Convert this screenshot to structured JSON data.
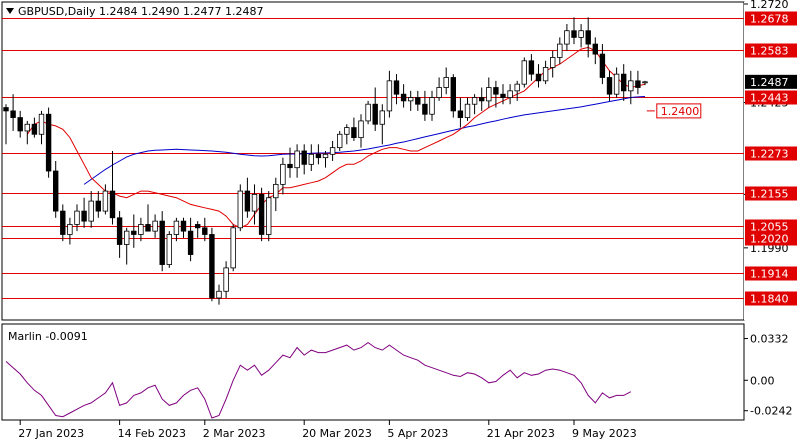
{
  "header": {
    "title": "GBPUSD,Daily  1.2484  1.2490  1.2477  1.2487"
  },
  "colors": {
    "bull": "#ffffff",
    "bear": "#000000",
    "candle_outline": "#000000",
    "level_line": "#e00000",
    "level_box": "#e00000",
    "level_text": "#ffffff",
    "ma_fast": "#e00000",
    "ma_slow": "#0000cc",
    "marlin": "#800080",
    "axis_text": "#000000",
    "grid_border": "#000000"
  },
  "chart_data": [
    {
      "type": "candlestick",
      "title": "GBPUSD,Daily  1.2484  1.2490  1.2477  1.2487",
      "symbol": "GBPUSD",
      "timeframe": "Daily",
      "last_ohlc": {
        "open": 1.2484,
        "high": 1.249,
        "low": 1.2477,
        "close": 1.2487
      },
      "current_price_label": "1.2487",
      "ylim": [
        1.178,
        1.272
      ],
      "y_tick_labels": [
        "1.2720",
        "1.2425",
        "1.2150",
        "1.1990"
      ],
      "y_tick_values": [
        1.272,
        1.2425,
        1.215,
        1.199
      ],
      "x_tick_labels": [
        "27 Jan 2023",
        "14 Feb 2023",
        "2 Mar 2023",
        "20 Mar 2023",
        "5 Apr 2023",
        "21 Apr 2023",
        "9 May 2023"
      ],
      "x_tick_index": [
        2,
        16,
        28,
        42,
        54,
        68,
        80
      ],
      "levels": [
        {
          "value": 1.2678,
          "label": "1.2678"
        },
        {
          "value": 1.2583,
          "label": "1.2583"
        },
        {
          "value": 1.2443,
          "label": "1.2443"
        },
        {
          "value": 1.2273,
          "label": "1.2273"
        },
        {
          "value": 1.2155,
          "label": "1.2155"
        },
        {
          "value": 1.2055,
          "label": "1.2055"
        },
        {
          "value": 1.202,
          "label": "1.2020"
        },
        {
          "value": 1.1914,
          "label": "1.1914"
        },
        {
          "value": 1.184,
          "label": "1.1840"
        }
      ],
      "annotation": {
        "value": 1.24,
        "label": "1.2400",
        "index": 88
      },
      "candles": [
        [
          1.241,
          1.242,
          1.23,
          1.24
        ],
        [
          1.24,
          1.245,
          1.234,
          1.238
        ],
        [
          1.238,
          1.24,
          1.232,
          1.234
        ],
        [
          1.234,
          1.237,
          1.23,
          1.236
        ],
        [
          1.236,
          1.238,
          1.232,
          1.233
        ],
        [
          1.233,
          1.24,
          1.23,
          1.239
        ],
        [
          1.239,
          1.241,
          1.22,
          1.222
        ],
        [
          1.222,
          1.225,
          1.208,
          1.21
        ],
        [
          1.21,
          1.212,
          1.201,
          1.203
        ],
        [
          1.203,
          1.208,
          1.2,
          1.206
        ],
        [
          1.206,
          1.212,
          1.204,
          1.21
        ],
        [
          1.21,
          1.214,
          1.205,
          1.207
        ],
        [
          1.207,
          1.216,
          1.205,
          1.213
        ],
        [
          1.213,
          1.216,
          1.208,
          1.21
        ],
        [
          1.21,
          1.218,
          1.209,
          1.216
        ],
        [
          1.216,
          1.228,
          1.206,
          1.208
        ],
        [
          1.208,
          1.21,
          1.196,
          1.2
        ],
        [
          1.2,
          1.205,
          1.194,
          1.204
        ],
        [
          1.204,
          1.209,
          1.199,
          1.203
        ],
        [
          1.203,
          1.208,
          1.201,
          1.206
        ],
        [
          1.206,
          1.212,
          1.204,
          1.204
        ],
        [
          1.204,
          1.209,
          1.202,
          1.207
        ],
        [
          1.207,
          1.21,
          1.192,
          1.194
        ],
        [
          1.194,
          1.204,
          1.193,
          1.203
        ],
        [
          1.203,
          1.208,
          1.201,
          1.207
        ],
        [
          1.207,
          1.208,
          1.202,
          1.204
        ],
        [
          1.204,
          1.208,
          1.195,
          1.197
        ],
        [
          1.206,
          1.207,
          1.202,
          1.205
        ],
        [
          1.205,
          1.208,
          1.201,
          1.203
        ],
        [
          1.203,
          1.205,
          1.183,
          1.184
        ],
        [
          1.184,
          1.188,
          1.182,
          1.186
        ],
        [
          1.186,
          1.195,
          1.184,
          1.193
        ],
        [
          1.193,
          1.206,
          1.192,
          1.205
        ],
        [
          1.205,
          1.218,
          1.204,
          1.216
        ],
        [
          1.216,
          1.22,
          1.208,
          1.21
        ],
        [
          1.21,
          1.218,
          1.206,
          1.215
        ],
        [
          1.215,
          1.217,
          1.201,
          1.203
        ],
        [
          1.203,
          1.216,
          1.201,
          1.214
        ],
        [
          1.214,
          1.22,
          1.21,
          1.218
        ],
        [
          1.218,
          1.226,
          1.215,
          1.224
        ],
        [
          1.224,
          1.229,
          1.22,
          1.223
        ],
        [
          1.223,
          1.23,
          1.22,
          1.228
        ],
        [
          1.228,
          1.23,
          1.221,
          1.224
        ],
        [
          1.224,
          1.23,
          1.222,
          1.227
        ],
        [
          1.227,
          1.23,
          1.224,
          1.226
        ],
        [
          1.226,
          1.228,
          1.223,
          1.227
        ],
        [
          1.227,
          1.231,
          1.225,
          1.229
        ],
        [
          1.229,
          1.234,
          1.228,
          1.233
        ],
        [
          1.233,
          1.236,
          1.23,
          1.235
        ],
        [
          1.235,
          1.238,
          1.231,
          1.232
        ],
        [
          1.232,
          1.239,
          1.229,
          1.237
        ],
        [
          1.237,
          1.243,
          1.236,
          1.242
        ],
        [
          1.242,
          1.247,
          1.234,
          1.236
        ],
        [
          1.236,
          1.242,
          1.23,
          1.24
        ],
        [
          1.24,
          1.252,
          1.238,
          1.249
        ],
        [
          1.249,
          1.251,
          1.242,
          1.245
        ],
        [
          1.245,
          1.248,
          1.241,
          1.243
        ],
        [
          1.243,
          1.246,
          1.24,
          1.244
        ],
        [
          1.244,
          1.246,
          1.24,
          1.242
        ],
        [
          1.242,
          1.246,
          1.237,
          1.239
        ],
        [
          1.239,
          1.246,
          1.237,
          1.244
        ],
        [
          1.244,
          1.25,
          1.243,
          1.247
        ],
        [
          1.247,
          1.253,
          1.245,
          1.25
        ],
        [
          1.25,
          1.251,
          1.238,
          1.24
        ],
        [
          1.24,
          1.244,
          1.235,
          1.238
        ],
        [
          1.238,
          1.244,
          1.237,
          1.242
        ],
        [
          1.242,
          1.245,
          1.239,
          1.244
        ],
        [
          1.244,
          1.247,
          1.24,
          1.243
        ],
        [
          1.243,
          1.25,
          1.241,
          1.247
        ],
        [
          1.247,
          1.249,
          1.241,
          1.245
        ],
        [
          1.245,
          1.248,
          1.242,
          1.244
        ],
        [
          1.244,
          1.248,
          1.242,
          1.246
        ],
        [
          1.246,
          1.249,
          1.243,
          1.248
        ],
        [
          1.248,
          1.256,
          1.247,
          1.255
        ],
        [
          1.255,
          1.257,
          1.249,
          1.251
        ],
        [
          1.251,
          1.254,
          1.247,
          1.249
        ],
        [
          1.249,
          1.255,
          1.248,
          1.253
        ],
        [
          1.253,
          1.258,
          1.25,
          1.256
        ],
        [
          1.256,
          1.262,
          1.254,
          1.26
        ],
        [
          1.26,
          1.266,
          1.258,
          1.264
        ],
        [
          1.264,
          1.268,
          1.26,
          1.262
        ],
        [
          1.262,
          1.266,
          1.259,
          1.264
        ],
        [
          1.264,
          1.268,
          1.256,
          1.26
        ],
        [
          1.26,
          1.262,
          1.254,
          1.257
        ],
        [
          1.257,
          1.26,
          1.248,
          1.25
        ],
        [
          1.25,
          1.252,
          1.243,
          1.245
        ],
        [
          1.245,
          1.253,
          1.244,
          1.251
        ],
        [
          1.251,
          1.254,
          1.243,
          1.246
        ],
        [
          1.246,
          1.252,
          1.242,
          1.249
        ],
        [
          1.249,
          1.252,
          1.245,
          1.247
        ],
        [
          1.2484,
          1.249,
          1.2477,
          1.2487
        ]
      ],
      "ma_fast": [
        1.233,
        1.236,
        1.237,
        1.236,
        1.2355,
        1.2345,
        1.232,
        1.228,
        1.224,
        1.22,
        1.218,
        1.216,
        1.2155,
        1.2145,
        1.214,
        1.215,
        1.216,
        1.216,
        1.2155,
        1.215,
        1.2145,
        1.214,
        1.213,
        1.212,
        1.2115,
        1.211,
        1.2105,
        1.21,
        1.2085,
        1.206,
        1.205,
        1.206,
        1.209,
        1.212,
        1.214,
        1.215,
        1.217,
        1.217,
        1.2175,
        1.218,
        1.2185,
        1.219,
        1.22,
        1.2215,
        1.223,
        1.224,
        1.224,
        1.225,
        1.2265,
        1.2275,
        1.2285,
        1.229,
        1.229,
        1.2285,
        1.228,
        1.228,
        1.229,
        1.23,
        1.231,
        1.232,
        1.233,
        1.2345,
        1.236,
        1.238,
        1.2395,
        1.241,
        1.242,
        1.243,
        1.244,
        1.245,
        1.246,
        1.248,
        1.25,
        1.252,
        1.253,
        1.254,
        1.2555,
        1.257,
        1.2585,
        1.259,
        1.258,
        1.255,
        1.252,
        1.25,
        1.248,
        1.247,
        1.2475,
        1.248
      ],
      "ma_slow": [
        1.218,
        1.2195,
        1.221,
        1.2225,
        1.2238,
        1.225,
        1.2262,
        1.227,
        1.2275,
        1.228,
        1.2282,
        1.2283,
        1.2284,
        1.2285,
        1.2284,
        1.2283,
        1.2282,
        1.2281,
        1.228,
        1.2278,
        1.2276,
        1.2273,
        1.227,
        1.2268,
        1.2266,
        1.2265,
        1.2266,
        1.2268,
        1.227,
        1.2271,
        1.2271,
        1.2272,
        1.2273,
        1.2274,
        1.2274,
        1.2275,
        1.2276,
        1.2278,
        1.228,
        1.2283,
        1.2286,
        1.229,
        1.2294,
        1.2298,
        1.2303,
        1.2307,
        1.2312,
        1.2317,
        1.2322,
        1.2327,
        1.2332,
        1.2337,
        1.2342,
        1.2347,
        1.2352,
        1.2356,
        1.2361,
        1.2366,
        1.237,
        1.2375,
        1.238,
        1.2384,
        1.2388,
        1.2391,
        1.2394,
        1.2397,
        1.24,
        1.2403,
        1.2406,
        1.2409,
        1.2412,
        1.2416,
        1.242,
        1.2424,
        1.2428,
        1.2432,
        1.2436,
        1.244,
        1.2442,
        1.2443
      ]
    },
    {
      "type": "line",
      "title": "Marlin -0.0091",
      "name": "Marlin",
      "last_value": -0.0091,
      "ylim": [
        -0.03,
        0.04
      ],
      "y_tick_labels": [
        "0.0332",
        "0.00",
        "-0.0242"
      ],
      "y_tick_values": [
        0.0332,
        0.0,
        -0.0242
      ],
      "values": [
        0.015,
        0.01,
        0.005,
        -0.002,
        -0.008,
        -0.012,
        -0.02,
        -0.028,
        -0.029,
        -0.026,
        -0.023,
        -0.02,
        -0.018,
        -0.014,
        -0.01,
        -0.002,
        -0.02,
        -0.018,
        -0.012,
        -0.01,
        -0.006,
        -0.004,
        -0.015,
        -0.02,
        -0.018,
        -0.012,
        -0.008,
        -0.006,
        -0.015,
        -0.03,
        -0.028,
        -0.015,
        0.0,
        0.012,
        0.008,
        0.012,
        0.004,
        0.008,
        0.014,
        0.02,
        0.018,
        0.026,
        0.02,
        0.024,
        0.022,
        0.022,
        0.024,
        0.026,
        0.028,
        0.024,
        0.026,
        0.03,
        0.026,
        0.024,
        0.028,
        0.024,
        0.02,
        0.018,
        0.016,
        0.012,
        0.01,
        0.008,
        0.006,
        0.004,
        0.003,
        0.006,
        0.005,
        0.002,
        -0.002,
        -0.001,
        0.004,
        0.008,
        0.002,
        0.006,
        0.004,
        0.005,
        0.008,
        0.009,
        0.008,
        0.006,
        0.004,
        -0.002,
        -0.012,
        -0.018,
        -0.01,
        -0.014,
        -0.012,
        -0.012,
        -0.0091
      ]
    }
  ]
}
